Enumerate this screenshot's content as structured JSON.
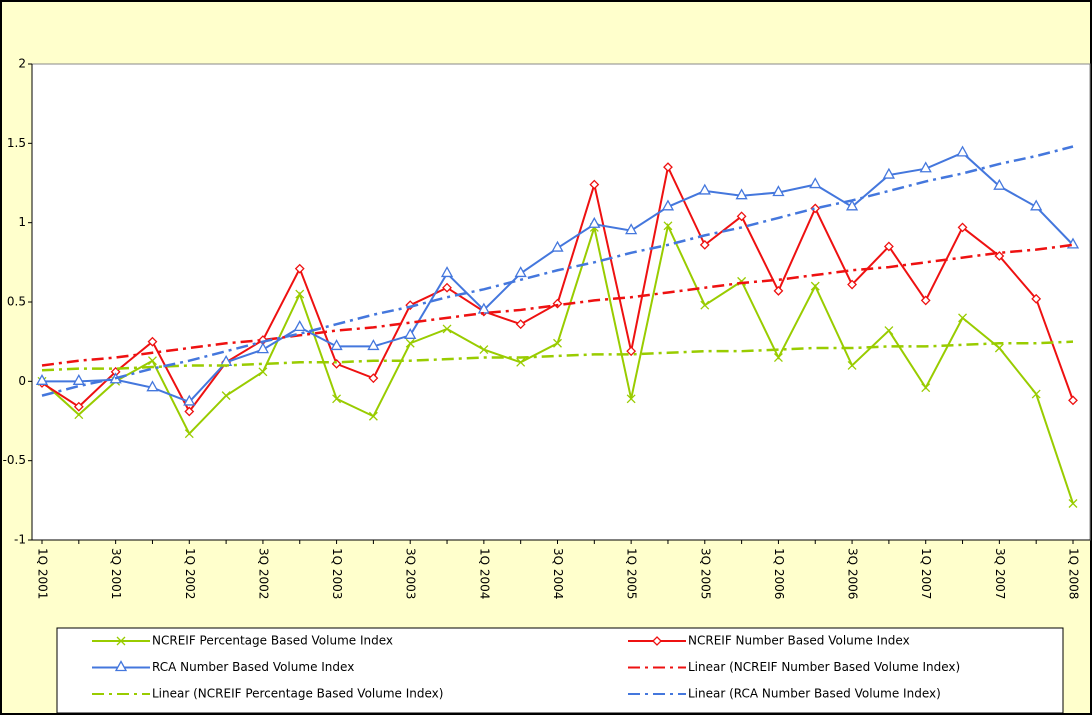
{
  "chart_data": {
    "type": "line",
    "categories": [
      "1Q 2001",
      null,
      "3Q 2001",
      null,
      "1Q 2002",
      null,
      "3Q 2002",
      null,
      "1Q 2003",
      null,
      "3Q 2003",
      null,
      "1Q 2004",
      null,
      "3Q 2004",
      null,
      "1Q 2005",
      null,
      "3Q 2005",
      null,
      "1Q 2006",
      null,
      "3Q 2006",
      null,
      "1Q 2007",
      null,
      "3Q 2007",
      null,
      "1Q 2008"
    ],
    "ylim": [
      -1,
      2
    ],
    "yticks": [
      -1,
      -0.5,
      0,
      0.5,
      1,
      1.5,
      2
    ],
    "grid": false,
    "legend": "bottom",
    "series": [
      {
        "name": "NCREIF Percentage Based Volume Index",
        "color": "#99cc00",
        "marker": "x",
        "dash": "solid",
        "values": [
          0,
          -0.21,
          0.0,
          0.13,
          -0.33,
          -0.09,
          0.06,
          0.55,
          -0.11,
          -0.22,
          0.24,
          0.33,
          0.2,
          0.12,
          0.24,
          0.97,
          -0.11,
          0.98,
          0.48,
          0.63,
          0.15,
          0.6,
          0.1,
          0.32,
          -0.04,
          0.4,
          0.21,
          -0.08,
          -0.77
        ]
      },
      {
        "name": "NCREIF Number Based Volume Index",
        "color": "#ee1111",
        "marker": "diamond",
        "dash": "solid",
        "values": [
          -0.01,
          -0.16,
          0.06,
          0.25,
          -0.19,
          0.12,
          0.26,
          0.71,
          0.11,
          0.02,
          0.48,
          0.59,
          0.44,
          0.36,
          0.49,
          1.24,
          0.19,
          1.35,
          0.86,
          1.04,
          0.57,
          1.09,
          0.61,
          0.85,
          0.51,
          0.97,
          0.79,
          0.52,
          -0.12
        ]
      },
      {
        "name": "RCA Number Based Volume Index",
        "color": "#4477dd",
        "marker": "triangle",
        "dash": "solid",
        "values": [
          0,
          0,
          0.01,
          -0.04,
          -0.13,
          0.12,
          0.2,
          0.34,
          0.22,
          0.22,
          0.29,
          0.68,
          0.45,
          0.68,
          0.84,
          0.99,
          0.95,
          1.1,
          1.2,
          1.17,
          1.19,
          1.24,
          1.1,
          1.3,
          1.34,
          1.44,
          1.23,
          1.1,
          0.86
        ]
      },
      {
        "name": "Linear (NCREIF Number Based Volume Index)",
        "color": "#ee1111",
        "marker": "none",
        "dash": "dashdot",
        "values": [
          0.1,
          0.13,
          0.15,
          0.18,
          0.21,
          0.24,
          0.26,
          0.29,
          0.32,
          0.34,
          0.37,
          0.4,
          0.43,
          0.45,
          0.48,
          0.51,
          0.53,
          0.56,
          0.59,
          0.62,
          0.64,
          0.67,
          0.7,
          0.72,
          0.75,
          0.78,
          0.81,
          0.83,
          0.86
        ]
      },
      {
        "name": "Linear (NCREIF Percentage Based Volume Index)",
        "color": "#99cc00",
        "marker": "none",
        "dash": "dashdot",
        "values": [
          0.07,
          0.08,
          0.08,
          0.09,
          0.1,
          0.1,
          0.11,
          0.12,
          0.12,
          0.13,
          0.13,
          0.14,
          0.15,
          0.15,
          0.16,
          0.17,
          0.17,
          0.18,
          0.19,
          0.19,
          0.2,
          0.21,
          0.21,
          0.22,
          0.22,
          0.23,
          0.24,
          0.24,
          0.25
        ]
      },
      {
        "name": "Linear (RCA Number Based Volume Index)",
        "color": "#4477dd",
        "marker": "none",
        "dash": "dashdot",
        "values": [
          -0.09,
          -0.03,
          0.02,
          0.08,
          0.13,
          0.19,
          0.25,
          0.3,
          0.36,
          0.42,
          0.47,
          0.53,
          0.58,
          0.64,
          0.7,
          0.75,
          0.81,
          0.86,
          0.92,
          0.97,
          1.03,
          1.09,
          1.14,
          1.2,
          1.26,
          1.31,
          1.37,
          1.42,
          1.48
        ]
      }
    ]
  }
}
